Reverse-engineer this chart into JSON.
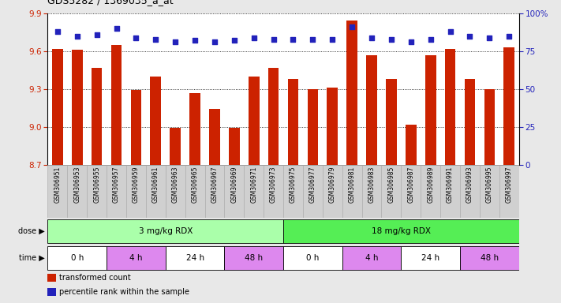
{
  "title": "GDS5282 / 1369035_a_at",
  "samples": [
    "GSM306951",
    "GSM306953",
    "GSM306955",
    "GSM306957",
    "GSM306959",
    "GSM306961",
    "GSM306963",
    "GSM306965",
    "GSM306967",
    "GSM306969",
    "GSM306971",
    "GSM306973",
    "GSM306975",
    "GSM306977",
    "GSM306979",
    "GSM306981",
    "GSM306983",
    "GSM306985",
    "GSM306987",
    "GSM306989",
    "GSM306991",
    "GSM306993",
    "GSM306995",
    "GSM306997"
  ],
  "bar_values": [
    9.62,
    9.61,
    9.47,
    9.65,
    9.29,
    9.4,
    8.99,
    9.27,
    9.14,
    8.99,
    9.4,
    9.47,
    9.38,
    9.3,
    9.31,
    9.84,
    9.57,
    9.38,
    9.02,
    9.57,
    9.62,
    9.38,
    9.3,
    9.63
  ],
  "percentile_values": [
    88,
    85,
    86,
    90,
    84,
    83,
    81,
    82,
    81,
    82,
    84,
    83,
    83,
    83,
    83,
    91,
    84,
    83,
    81,
    83,
    88,
    85,
    84,
    85
  ],
  "ylim_left": [
    8.7,
    9.9
  ],
  "ylim_right": [
    0,
    100
  ],
  "yticks_left": [
    8.7,
    9.0,
    9.3,
    9.6,
    9.9
  ],
  "yticks_right": [
    0,
    25,
    50,
    75,
    100
  ],
  "ytick_labels_right": [
    "0",
    "25",
    "50",
    "75",
    "100%"
  ],
  "bar_color": "#cc2200",
  "dot_color": "#2222bb",
  "bg_color": "#e8e8e8",
  "plot_bg": "#ffffff",
  "sample_bg": "#d0d0d0",
  "dose_groups": [
    {
      "label": "3 mg/kg RDX",
      "start": 0,
      "end": 11,
      "color": "#aaffaa"
    },
    {
      "label": "18 mg/kg RDX",
      "start": 12,
      "end": 23,
      "color": "#55ee55"
    }
  ],
  "time_groups": [
    {
      "label": "0 h",
      "start": 0,
      "end": 2,
      "color": "#ffffff"
    },
    {
      "label": "4 h",
      "start": 3,
      "end": 5,
      "color": "#dd88ee"
    },
    {
      "label": "24 h",
      "start": 6,
      "end": 8,
      "color": "#ffffff"
    },
    {
      "label": "48 h",
      "start": 9,
      "end": 11,
      "color": "#dd88ee"
    },
    {
      "label": "0 h",
      "start": 12,
      "end": 14,
      "color": "#ffffff"
    },
    {
      "label": "4 h",
      "start": 15,
      "end": 17,
      "color": "#dd88ee"
    },
    {
      "label": "24 h",
      "start": 18,
      "end": 20,
      "color": "#ffffff"
    },
    {
      "label": "48 h",
      "start": 21,
      "end": 23,
      "color": "#dd88ee"
    }
  ],
  "legend_items": [
    {
      "label": "transformed count",
      "color": "#cc2200"
    },
    {
      "label": "percentile rank within the sample",
      "color": "#2222bb"
    }
  ]
}
